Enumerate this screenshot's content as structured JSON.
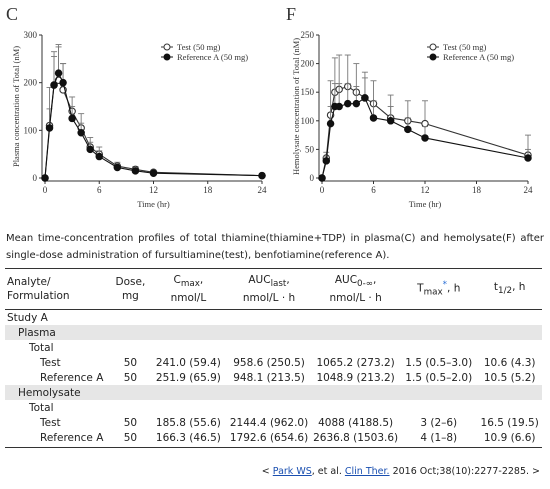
{
  "chart_data": [
    {
      "type": "line",
      "title": "C",
      "ylabel": "Plasma concentration of Total (nM)",
      "xlabel": "Time (hr)",
      "x": [
        0,
        0.5,
        1,
        1.5,
        2,
        3,
        4,
        5,
        6,
        8,
        10,
        12,
        24
      ],
      "xlim": [
        0,
        24
      ],
      "xticks": [
        0,
        6,
        12,
        18,
        24
      ],
      "ylim": [
        0,
        300
      ],
      "yticks": [
        0,
        100,
        200,
        300
      ],
      "legend": "upper right",
      "series": [
        {
          "name": "Test (50 mg)",
          "color": "#333333",
          "marker": "open-circle",
          "values": [
            0,
            110,
            195,
            205,
            185,
            140,
            105,
            65,
            50,
            25,
            18,
            12,
            5
          ],
          "errors": [
            0,
            80,
            70,
            70,
            55,
            30,
            30,
            20,
            15,
            8,
            6,
            4,
            3
          ]
        },
        {
          "name": "Reference A (50 mg)",
          "color": "#111111",
          "marker": "filled-circle",
          "values": [
            0,
            105,
            195,
            220,
            200,
            125,
            95,
            60,
            45,
            22,
            15,
            10,
            5
          ],
          "errors": [
            0,
            40,
            60,
            60,
            40,
            25,
            20,
            15,
            12,
            6,
            5,
            4,
            3
          ]
        }
      ]
    },
    {
      "type": "line",
      "title": "F",
      "ylabel": "Hemolysate concentration of Total (nM)",
      "xlabel": "Time (hr)",
      "x": [
        0,
        0.5,
        1,
        1.5,
        2,
        3,
        4,
        5,
        6,
        8,
        10,
        12,
        24
      ],
      "xlim": [
        0,
        24
      ],
      "xticks": [
        0,
        6,
        12,
        18,
        24
      ],
      "ylim": [
        0,
        250
      ],
      "yticks": [
        0,
        50,
        100,
        150,
        200,
        250
      ],
      "legend": "upper right",
      "series": [
        {
          "name": "Test (50 mg)",
          "color": "#333333",
          "marker": "open-circle",
          "values": [
            0,
            35,
            110,
            150,
            155,
            160,
            150,
            140,
            130,
            105,
            100,
            95,
            40
          ],
          "errors": [
            0,
            10,
            60,
            60,
            60,
            55,
            50,
            45,
            40,
            40,
            35,
            40,
            35
          ]
        },
        {
          "name": "Reference A (50 mg)",
          "color": "#111111",
          "marker": "filled-circle",
          "values": [
            0,
            30,
            95,
            125,
            125,
            130,
            130,
            140,
            105,
            100,
            85,
            70,
            35
          ],
          "errors": [
            0,
            8,
            30,
            40,
            40,
            35,
            30,
            35,
            30,
            25,
            20,
            20,
            15
          ]
        }
      ]
    }
  ],
  "caption": "Mean time-concentration profiles of total thiamine(thiamine+TDP) in plasma(C) and hemolysate(F) after single-dose administration of fursultiamine(test), benfotiamine(reference A).",
  "table": {
    "header": [
      {
        "text": "Analyte/",
        "line2": "Formulation"
      },
      {
        "text": "Dose,",
        "line2": "mg"
      },
      {
        "text": "C",
        "sub": "max",
        "suffix": ",",
        "line2": "nmol/L"
      },
      {
        "text": "AUC",
        "sub": "last",
        "suffix": ",",
        "line2": "nmol/L · h"
      },
      {
        "text": "AUC",
        "sub": "0-∞",
        "suffix": ",",
        "line2": "nmol/L · h"
      },
      {
        "text": "T",
        "sub": "max",
        "sup": "*",
        "suffix": ", h"
      },
      {
        "text": "t",
        "sub": "1/2",
        "suffix": ", h"
      }
    ],
    "study": {
      "label": "Study A",
      "sections": [
        {
          "label": "Plasma",
          "groups": [
            {
              "label": "Total",
              "rows": [
                {
                  "label": "Test",
                  "cells": [
                    "50",
                    "241.0 (59.4)",
                    "958.6 (250.5)",
                    "1065.2 (273.2)",
                    "1.5 (0.5–3.0)",
                    "10.6 (4.3)"
                  ]
                },
                {
                  "label": "Reference A",
                  "cells": [
                    "50",
                    "251.9 (65.9)",
                    "948.1 (213.5)",
                    "1048.9 (213.2)",
                    "1.5 (0.5–2.0)",
                    "10.5 (5.2)"
                  ]
                }
              ]
            }
          ]
        },
        {
          "label": "Hemolysate",
          "groups": [
            {
              "label": "Total",
              "rows": [
                {
                  "label": "Test",
                  "cells": [
                    "50",
                    "185.8 (55.6)",
                    "2144.4 (962.0)",
                    "4088 (4188.5)",
                    "3 (2–6)",
                    "16.5 (19.5)"
                  ]
                },
                {
                  "label": "Reference A",
                  "cells": [
                    "50",
                    "166.3 (46.5)",
                    "1792.6 (654.6)",
                    "2636.8 (1503.6)",
                    "4 (1–8)",
                    "10.9 (6.6)"
                  ]
                }
              ]
            }
          ]
        }
      ]
    }
  },
  "citation": [
    "< ",
    "Park WS",
    ", et al. ",
    "Clin Ther.",
    " 2016 Oct;38(10):2277-2285. >"
  ]
}
